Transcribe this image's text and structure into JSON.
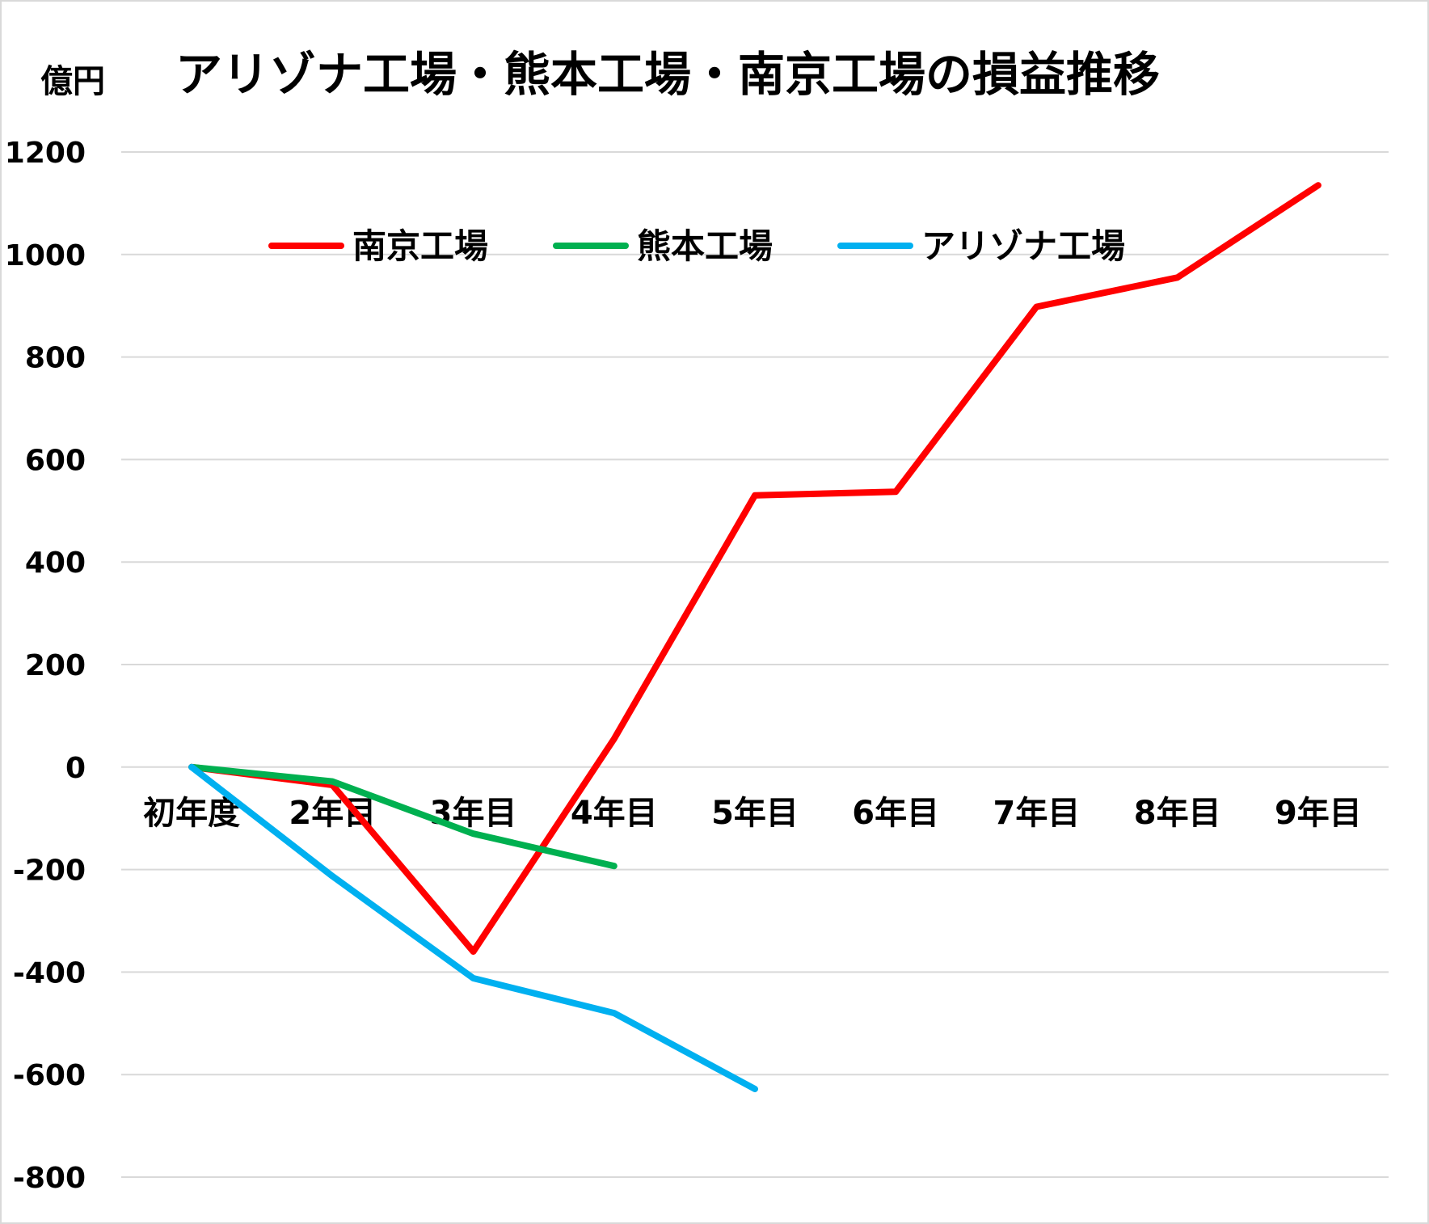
{
  "chart_data": {
    "type": "line",
    "title": "アリゾナ工場・熊本工場・南京工場の損益推移",
    "ylabel": "億円",
    "xlabel": "",
    "categories": [
      "初年度",
      "2年目",
      "3年目",
      "4年目",
      "5年目",
      "6年目",
      "7年目",
      "8年目",
      "9年目"
    ],
    "ylim": [
      -800,
      1200
    ],
    "yticks": [
      1200,
      1000,
      800,
      600,
      400,
      200,
      0,
      -200,
      -400,
      -600,
      -800
    ],
    "grid": true,
    "legend_position": "top",
    "series": [
      {
        "name": "南京工場",
        "color": "#ff0000",
        "values": [
          0,
          -35,
          -360,
          55,
          530,
          537,
          898,
          955,
          1135
        ]
      },
      {
        "name": "熊本工場",
        "color": "#00b050",
        "values": [
          0,
          -28,
          -130,
          -193,
          null,
          null,
          null,
          null,
          null
        ]
      },
      {
        "name": "アリゾナ工場",
        "color": "#00b0f0",
        "values": [
          0,
          -213,
          -412,
          -480,
          -628,
          null,
          null,
          null,
          null
        ]
      }
    ]
  }
}
